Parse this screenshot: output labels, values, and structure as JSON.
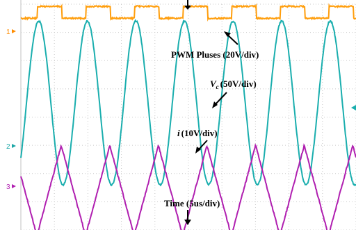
{
  "chart_data": {
    "type": "line",
    "grid": true,
    "x_divisions": 10,
    "y_divisions": 8,
    "channel_markers": [
      {
        "label": "1",
        "color": "#ff8c00"
      },
      {
        "label": "2",
        "color": "#1aa6a6"
      },
      {
        "label": "3",
        "color": "#b01fb0"
      }
    ],
    "annotations": {
      "pwm": "PWM  Pluses (20V/div)",
      "vc_symbol": "V",
      "vc_sub": "c",
      "vc_scale": "(50V/div)",
      "i_symbol": "i",
      "i_scale": "(10V/div)",
      "time": "Time (5us/div)"
    },
    "series": [
      {
        "key": "pwm",
        "color": "#ff9e0d",
        "period_div": 1.45,
        "phase_div": 0.5,
        "duty": 0.5,
        "high_div": 0.08,
        "low_div": 0.5
      },
      {
        "key": "vc",
        "color": "#1aaeae",
        "period_div": 1.45,
        "phase_div": 0.17,
        "center_div": 3.5,
        "amplitude_div": 2.9
      },
      {
        "key": "i",
        "color": "#b01fb0",
        "period_div": 1.45,
        "phase_div": 0.48,
        "center_div": 6.6,
        "amplitude_div": 1.6
      }
    ],
    "colors": {
      "background": "#ffffff",
      "grid": "#c8c8c8",
      "pwm": "#ff9e0d",
      "vc": "#1aaeae",
      "i": "#b01fb0",
      "annotation": "#000000"
    }
  }
}
